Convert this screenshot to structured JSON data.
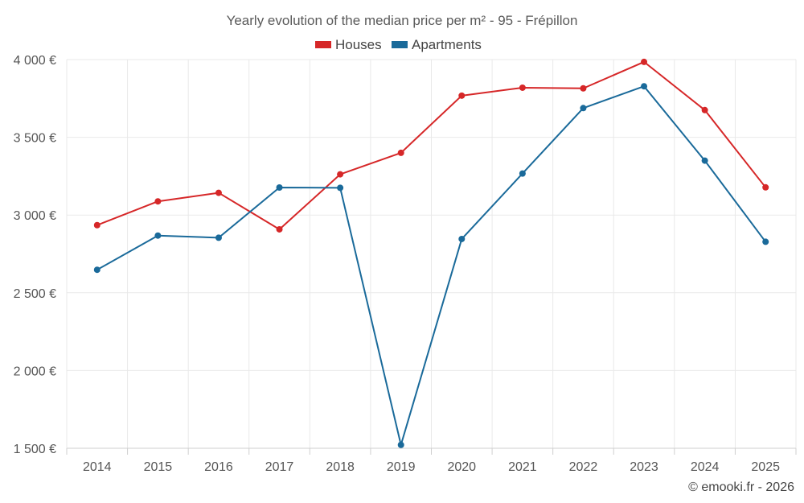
{
  "chart_data": {
    "type": "line",
    "title": "Yearly evolution of the median price per m² - 95 - Frépillon",
    "categories": [
      "2014",
      "2015",
      "2016",
      "2017",
      "2018",
      "2019",
      "2020",
      "2021",
      "2022",
      "2023",
      "2024",
      "2025"
    ],
    "series": [
      {
        "name": "Houses",
        "color": "#d62728",
        "values": [
          2935,
          3088,
          3143,
          2908,
          3262,
          3400,
          3768,
          3819,
          3815,
          3985,
          3675,
          3178
        ]
      },
      {
        "name": "Apartments",
        "color": "#1a6a9a",
        "values": [
          2648,
          2868,
          2854,
          3177,
          3175,
          1522,
          2846,
          3267,
          3688,
          3828,
          3350,
          2828
        ]
      }
    ],
    "ylim": [
      1500,
      4000
    ],
    "yticks": [
      4000,
      3500,
      3000,
      2500,
      2000,
      1500
    ],
    "ytick_labels": [
      "4 000 €",
      "3 500 €",
      "3 000 €",
      "2 500 €",
      "2 000 €",
      "1 500 €"
    ],
    "xlabel": "",
    "ylabel": "",
    "grid": true,
    "legend_position": "top-center"
  },
  "credit": "© emooki.fr - 2026"
}
